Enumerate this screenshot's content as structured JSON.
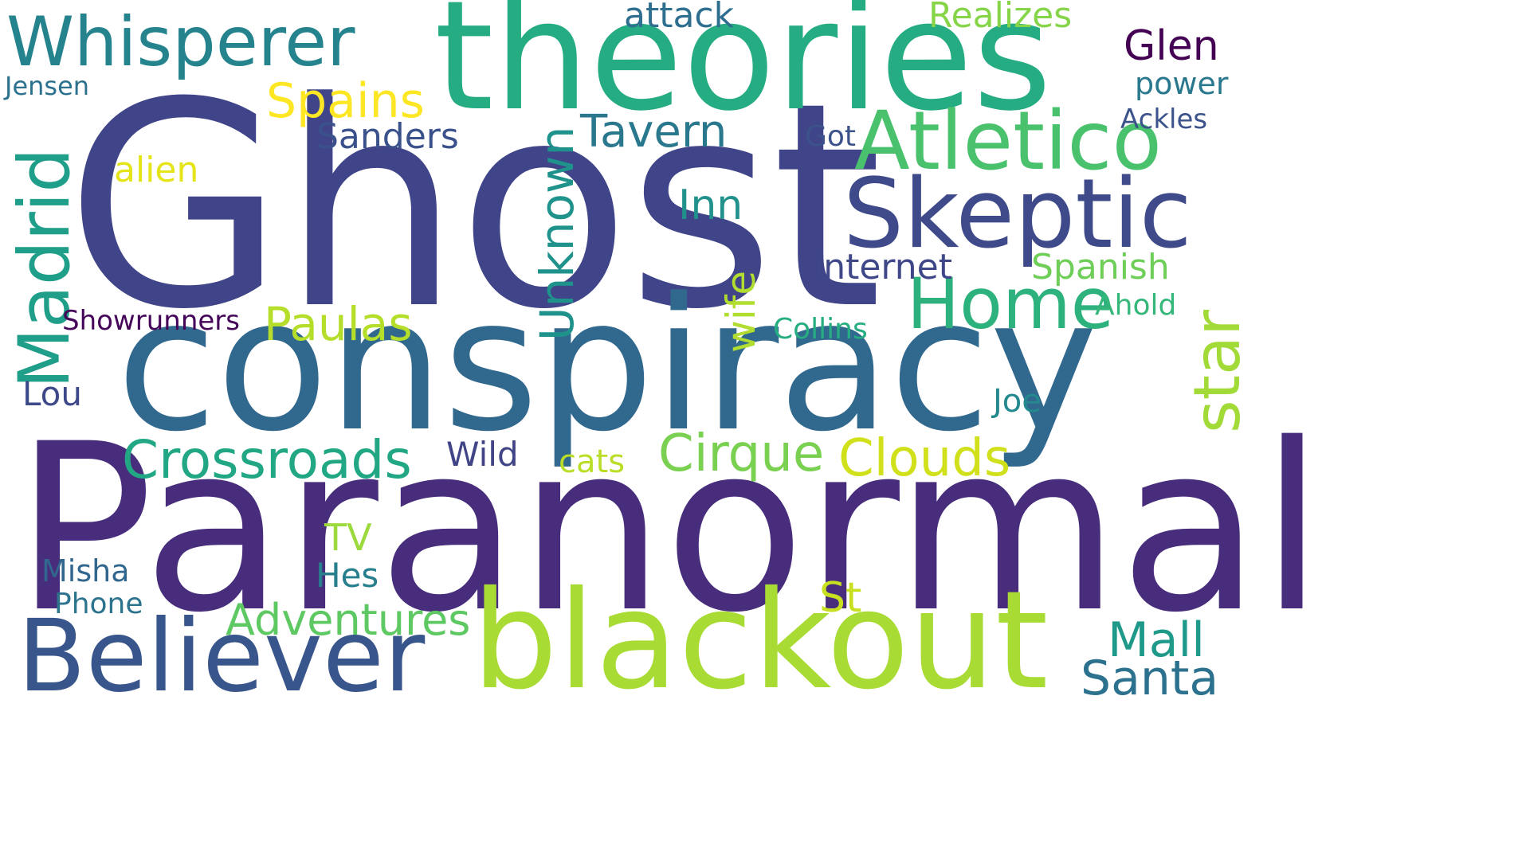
{
  "words": [
    {
      "text": "Ghost",
      "color": "#404488"
    },
    {
      "text": "Paranormal",
      "color": "#472d7b"
    },
    {
      "text": "conspiracy",
      "color": "#31688e"
    },
    {
      "text": "theories",
      "color": "#25ac82"
    },
    {
      "text": "blackout",
      "color": "#a8db34"
    },
    {
      "text": "Believer",
      "color": "#39568c"
    },
    {
      "text": "Skeptic",
      "color": "#3e4a89"
    },
    {
      "text": "Atletico",
      "color": "#4ac16d"
    },
    {
      "text": "Whisperer",
      "color": "#25838e"
    },
    {
      "text": "Madrid",
      "color": "#1f9e89"
    },
    {
      "text": "Home",
      "color": "#2db27d"
    },
    {
      "text": "star",
      "color": "#a2da37"
    },
    {
      "text": "Unknown",
      "color": "#20928c"
    },
    {
      "text": "Crossroads",
      "color": "#22a785"
    },
    {
      "text": "Clouds",
      "color": "#d0e11c"
    },
    {
      "text": "Cirque",
      "color": "#7ad151"
    },
    {
      "text": "Adventures",
      "color": "#5ec962"
    },
    {
      "text": "Santa",
      "color": "#2c728e"
    },
    {
      "text": "Mall",
      "color": "#1f9a8a"
    },
    {
      "text": "Spains",
      "color": "#fde725"
    },
    {
      "text": "Paulas",
      "color": "#b5de2b"
    },
    {
      "text": "Tavern",
      "color": "#2a788e"
    },
    {
      "text": "Inn",
      "color": "#21918c"
    },
    {
      "text": "wife",
      "color": "#b0dd2f"
    },
    {
      "text": "Glen",
      "color": "#440154"
    },
    {
      "text": "Realizes",
      "color": "#86d549"
    },
    {
      "text": "attack",
      "color": "#2e6e8e"
    },
    {
      "text": "Sanders",
      "color": "#3b518b"
    },
    {
      "text": "alien",
      "color": "#e5e419"
    },
    {
      "text": "Spanish",
      "color": "#6ece58"
    },
    {
      "text": "internet",
      "color": "#3f4788"
    },
    {
      "text": "St",
      "color": "#c8e020"
    },
    {
      "text": "TV",
      "color": "#9bd93c"
    },
    {
      "text": "Hes",
      "color": "#277f8e"
    },
    {
      "text": "Misha",
      "color": "#31678e"
    },
    {
      "text": "Phone",
      "color": "#2c738e"
    },
    {
      "text": "Lou",
      "color": "#3e4989"
    },
    {
      "text": "Wild",
      "color": "#414487"
    },
    {
      "text": "cats",
      "color": "#bade28"
    },
    {
      "text": "Joe",
      "color": "#23898e"
    },
    {
      "text": "Collins",
      "color": "#26ad81"
    },
    {
      "text": "Ahold",
      "color": "#35b779"
    },
    {
      "text": "Showrunners",
      "color": "#450559"
    },
    {
      "text": "Got",
      "color": "#3b528b"
    },
    {
      "text": "Ackles",
      "color": "#3b528b"
    },
    {
      "text": "power",
      "color": "#2a788e"
    },
    {
      "text": "Jensen",
      "color": "#2c718e"
    }
  ]
}
